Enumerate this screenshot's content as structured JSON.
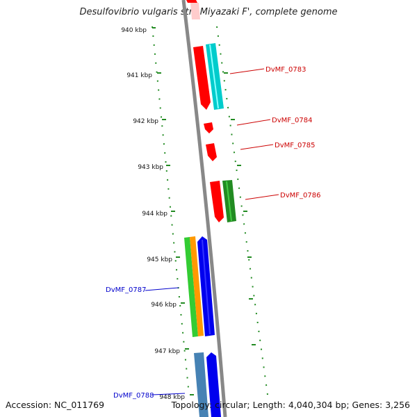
{
  "title": "Desulfovibrio vulgaris str. 'Miyazaki F', complete genome",
  "accession": "Accession: NC_011769",
  "summary": "Topology: circular; Length: 4,040,304 bp; Genes: 3,256",
  "kbp_labels": [
    "940 kbp",
    "941 kbp",
    "942 kbp",
    "943 kbp",
    "944 kbp",
    "945 kbp",
    "946 kbp",
    "947 kbp",
    "948 kbp"
  ],
  "gene_labels": [
    {
      "text": "DvMF_0783",
      "color": "#cc0000"
    },
    {
      "text": "DvMF_0784",
      "color": "#cc0000"
    },
    {
      "text": "DvMF_0785",
      "color": "#cc0000"
    },
    {
      "text": "DvMF_0786",
      "color": "#cc0000"
    },
    {
      "text": "DvMF_0787",
      "color": "#0000cc"
    },
    {
      "text": "DvMF_0788",
      "color": "#0000cc"
    }
  ],
  "colors": {
    "backbone": "#888888",
    "ticks": "#228b22",
    "forward_gene": "#ff0000",
    "cyan_gene": "#00cccc",
    "green_gene": "#228b22",
    "lime_gene": "#33cc33",
    "orange_gene": "#ff9900",
    "blue_gene": "#0000ee",
    "steel_gene": "#4682b4"
  }
}
